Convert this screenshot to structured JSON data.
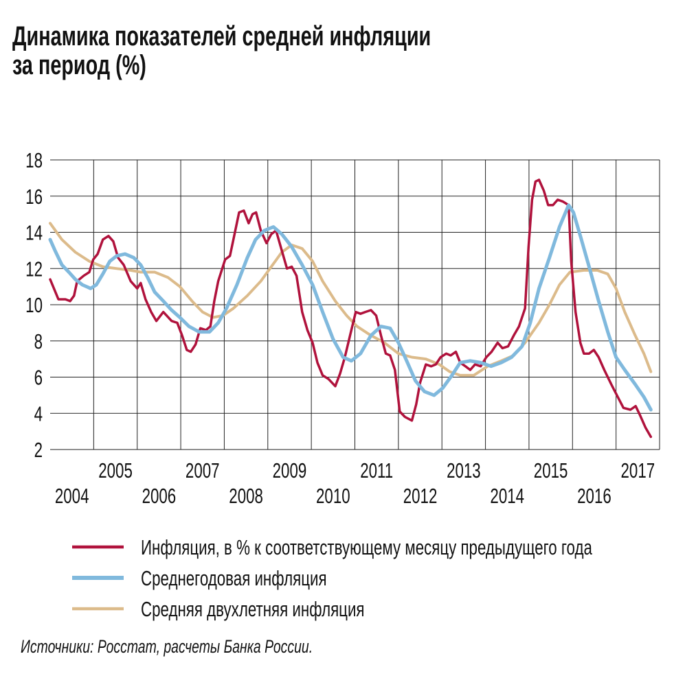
{
  "chart_data": {
    "type": "line",
    "title": [
      "Динамика показателей средней инфляции",
      "за период (%)"
    ],
    "source": "Источники: Росстат, расчеты Банка России.",
    "xlim": [
      2004,
      2018
    ],
    "xticks": [
      {
        "value": 2004.5,
        "label": "2004"
      },
      {
        "value": 2005.5,
        "label": "2005"
      },
      {
        "value": 2006.5,
        "label": "2006"
      },
      {
        "value": 2007.5,
        "label": "2007"
      },
      {
        "value": 2008.5,
        "label": "2008"
      },
      {
        "value": 2009.5,
        "label": "2009"
      },
      {
        "value": 2010.5,
        "label": "2010"
      },
      {
        "value": 2011.5,
        "label": "2011"
      },
      {
        "value": 2012.5,
        "label": "2012"
      },
      {
        "value": 2013.5,
        "label": "2013"
      },
      {
        "value": 2014.5,
        "label": "2014"
      },
      {
        "value": 2015.5,
        "label": "2015"
      },
      {
        "value": 2016.5,
        "label": "2016"
      },
      {
        "value": 2017.5,
        "label": "2017"
      }
    ],
    "xgrid": [
      2005,
      2006,
      2007,
      2008,
      2009,
      2010,
      2011,
      2012,
      2013,
      2014,
      2015,
      2016,
      2017,
      2018
    ],
    "ylim": [
      2,
      18
    ],
    "yticks": [
      2,
      4,
      6,
      8,
      10,
      12,
      14,
      16,
      18
    ],
    "grid": true,
    "series": [
      {
        "name": "Инфляция, в % к соответствующему месяцу предыдущего года",
        "color": "#b0123c",
        "x": [
          2004.0,
          2004.19,
          2004.35,
          2004.46,
          2004.55,
          2004.62,
          2004.77,
          2004.9,
          2004.99,
          2005.09,
          2005.21,
          2005.34,
          2005.45,
          2005.56,
          2005.69,
          2005.85,
          2006.0,
          2006.08,
          2006.19,
          2006.32,
          2006.44,
          2006.6,
          2006.79,
          2006.92,
          2007.03,
          2007.14,
          2007.23,
          2007.34,
          2007.45,
          2007.58,
          2007.68,
          2007.77,
          2007.86,
          2008.02,
          2008.13,
          2008.21,
          2008.34,
          2008.45,
          2008.56,
          2008.65,
          2008.73,
          2008.84,
          2008.97,
          2009.08,
          2009.19,
          2009.32,
          2009.44,
          2009.55,
          2009.66,
          2009.79,
          2009.91,
          2010.03,
          2010.14,
          2010.26,
          2010.39,
          2010.55,
          2010.66,
          2010.77,
          2010.89,
          2011.02,
          2011.13,
          2011.24,
          2011.37,
          2011.49,
          2011.6,
          2011.71,
          2011.81,
          2011.92,
          2012.03,
          2012.15,
          2012.31,
          2012.41,
          2012.5,
          2012.63,
          2012.75,
          2012.86,
          2012.97,
          2013.1,
          2013.2,
          2013.32,
          2013.42,
          2013.54,
          2013.65,
          2013.76,
          2013.89,
          2014.02,
          2014.14,
          2014.28,
          2014.39,
          2014.52,
          2014.65,
          2014.77,
          2014.91,
          2014.99,
          2015.07,
          2015.15,
          2015.23,
          2015.34,
          2015.44,
          2015.55,
          2015.66,
          2015.78,
          2015.91,
          2015.97,
          2016.07,
          2016.18,
          2016.26,
          2016.38,
          2016.49,
          2016.6,
          2016.73,
          2016.89,
          2017.04,
          2017.17,
          2017.33,
          2017.45,
          2017.55,
          2017.68,
          2017.8
        ],
        "values": [
          11.4,
          10.3,
          10.3,
          10.2,
          10.5,
          11.3,
          11.6,
          11.8,
          12.5,
          12.8,
          13.6,
          13.8,
          13.5,
          12.6,
          12.2,
          11.3,
          10.9,
          11.2,
          10.3,
          9.6,
          9.1,
          9.6,
          9.1,
          9.0,
          8.3,
          7.5,
          7.4,
          7.8,
          8.7,
          8.6,
          8.8,
          10.2,
          11.3,
          12.5,
          12.7,
          13.6,
          15.1,
          15.2,
          14.5,
          15.0,
          15.1,
          14.1,
          13.4,
          13.9,
          14.1,
          13.0,
          12.0,
          12.1,
          11.6,
          9.6,
          8.6,
          7.9,
          6.8,
          6.1,
          5.9,
          5.5,
          6.2,
          7.1,
          8.3,
          9.6,
          9.5,
          9.6,
          9.7,
          9.4,
          8.3,
          7.3,
          7.2,
          6.4,
          4.1,
          3.8,
          3.6,
          4.5,
          5.7,
          6.7,
          6.6,
          6.7,
          7.1,
          7.3,
          7.2,
          7.4,
          6.8,
          6.6,
          6.4,
          6.7,
          6.6,
          7.1,
          7.4,
          7.9,
          7.6,
          7.7,
          8.3,
          8.8,
          9.8,
          13.2,
          15.8,
          16.8,
          16.9,
          16.3,
          15.5,
          15.5,
          15.8,
          15.7,
          15.5,
          12.4,
          9.6,
          7.9,
          7.3,
          7.3,
          7.5,
          7.1,
          6.4,
          5.6,
          4.9,
          4.3,
          4.2,
          4.4,
          3.9,
          3.2,
          2.7
        ]
      },
      {
        "name": "Среднегодовая инфляция",
        "color": "#80b9dd",
        "x": [
          2004.0,
          2004.11,
          2004.27,
          2004.43,
          2004.58,
          2004.74,
          2004.93,
          2005.06,
          2005.21,
          2005.37,
          2005.53,
          2005.72,
          2005.92,
          2006.08,
          2006.24,
          2006.4,
          2006.6,
          2006.79,
          2006.98,
          2007.19,
          2007.42,
          2007.66,
          2007.86,
          2008.05,
          2008.29,
          2008.53,
          2008.72,
          2008.92,
          2009.13,
          2009.32,
          2009.55,
          2009.79,
          2010.03,
          2010.26,
          2010.5,
          2010.73,
          2010.92,
          2011.13,
          2011.37,
          2011.6,
          2011.81,
          2012.0,
          2012.19,
          2012.39,
          2012.6,
          2012.82,
          2013.02,
          2013.23,
          2013.42,
          2013.65,
          2013.89,
          2014.13,
          2014.36,
          2014.6,
          2014.84,
          2015.03,
          2015.23,
          2015.47,
          2015.7,
          2015.91,
          2016.02,
          2016.18,
          2016.38,
          2016.6,
          2016.81,
          2017.0,
          2017.2,
          2017.44,
          2017.64,
          2017.8
        ],
        "values": [
          13.6,
          13.0,
          12.2,
          11.8,
          11.4,
          11.1,
          10.9,
          11.1,
          11.7,
          12.4,
          12.7,
          12.8,
          12.6,
          12.2,
          11.5,
          10.7,
          10.2,
          9.7,
          9.3,
          8.8,
          8.5,
          8.5,
          9.0,
          9.8,
          11.1,
          12.6,
          13.6,
          14.1,
          14.3,
          13.9,
          13.2,
          12.2,
          11.1,
          9.6,
          8.1,
          7.1,
          6.9,
          7.3,
          8.3,
          8.8,
          8.7,
          7.9,
          6.9,
          5.8,
          5.2,
          5.0,
          5.4,
          6.1,
          6.8,
          6.9,
          6.8,
          6.6,
          6.8,
          7.1,
          7.7,
          9.0,
          10.9,
          12.6,
          14.3,
          15.5,
          15.1,
          13.8,
          12.1,
          10.2,
          8.5,
          7.1,
          6.4,
          5.6,
          4.9,
          4.2
        ]
      },
      {
        "name": "Средняя двухлетняя инфляция",
        "color": "#dcbb8b",
        "x": [
          2004.0,
          2004.27,
          2004.58,
          2004.9,
          2005.21,
          2005.53,
          2005.85,
          2006.08,
          2006.4,
          2006.71,
          2006.98,
          2007.26,
          2007.5,
          2007.74,
          2007.97,
          2008.21,
          2008.53,
          2008.84,
          2009.08,
          2009.32,
          2009.55,
          2009.79,
          2010.03,
          2010.26,
          2010.55,
          2010.81,
          2011.05,
          2011.37,
          2011.68,
          2012.0,
          2012.31,
          2012.63,
          2012.94,
          2013.18,
          2013.42,
          2013.73,
          2014.05,
          2014.36,
          2014.65,
          2014.91,
          2015.23,
          2015.47,
          2015.7,
          2015.94,
          2016.26,
          2016.57,
          2016.81,
          2017.0,
          2017.2,
          2017.44,
          2017.64,
          2017.8
        ],
        "values": [
          14.5,
          13.6,
          12.9,
          12.4,
          12.1,
          12.0,
          11.9,
          11.8,
          11.8,
          11.5,
          11.0,
          10.2,
          9.6,
          9.3,
          9.4,
          9.8,
          10.5,
          11.3,
          12.1,
          12.9,
          13.3,
          13.1,
          12.4,
          11.3,
          10.2,
          9.4,
          8.8,
          8.3,
          7.9,
          7.3,
          7.1,
          7.0,
          6.7,
          6.3,
          6.1,
          6.1,
          6.6,
          6.9,
          7.2,
          7.9,
          9.0,
          10.0,
          11.1,
          11.8,
          11.9,
          11.9,
          11.7,
          10.9,
          9.6,
          8.3,
          7.3,
          6.3
        ]
      }
    ]
  }
}
